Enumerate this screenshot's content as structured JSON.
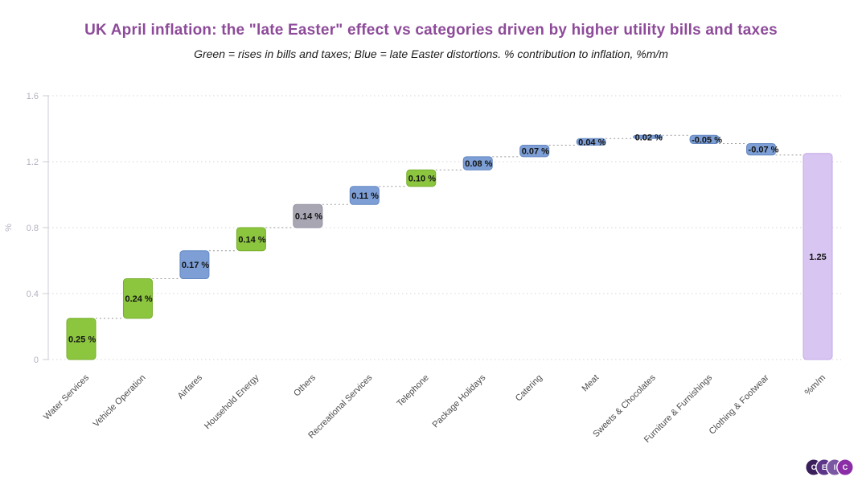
{
  "header": {
    "title": "UK April inflation: the \"late Easter\" effect vs categories driven by higher utility bills and taxes",
    "subtitle": "Green = rises in bills and taxes; Blue = late Easter distortions. % contribution to inflation, %m/m",
    "title_color": "#8d4a99"
  },
  "chart_data": {
    "type": "bar",
    "subtype": "waterfall",
    "title": "UK April inflation: the \"late Easter\" effect vs categories driven by higher utility bills and taxes",
    "subtitle": "Green = rises in bills and taxes; Blue = late Easter distortions. % contribution to inflation, %m/m",
    "categories": [
      "Water Services",
      "Vehicle Operation",
      "Airfares",
      "Household Energy",
      "Others",
      "Recreational Services",
      "Telephone",
      "Package Holidays",
      "Catering",
      "Meat",
      "Sweets & Chocolates",
      "Furniture & Furnishings",
      "Clothing & Footwear",
      "%m/m"
    ],
    "values": [
      0.25,
      0.24,
      0.17,
      0.14,
      0.14,
      0.11,
      0.1,
      0.08,
      0.07,
      0.04,
      0.02,
      -0.05,
      -0.07,
      1.25
    ],
    "value_labels": [
      "0.25 %",
      "0.24 %",
      "0.17 %",
      "0.14 %",
      "0.14 %",
      "0.11 %",
      "0.10 %",
      "0.08 %",
      "0.07 %",
      "0.04 %",
      "0.02 %",
      "-0.05 %",
      "-0.07 %",
      "1.25"
    ],
    "is_total": [
      false,
      false,
      false,
      false,
      false,
      false,
      false,
      false,
      false,
      false,
      false,
      false,
      false,
      true
    ],
    "types": [
      "bills",
      "bills",
      "easter",
      "bills",
      "other",
      "easter",
      "bills",
      "easter",
      "easter",
      "easter",
      "easter",
      "easter",
      "easter",
      "total"
    ],
    "color_map": {
      "bills": "#8cc63f",
      "easter": "#7d9fd6",
      "other": "#a9a6b4",
      "total": "#d8c5f1"
    },
    "border_map": {
      "bills": "#76ad2b",
      "easter": "#6487c2",
      "other": "#918da0",
      "total": "#c3a9e6"
    },
    "series_legend": {
      "bills": "rises in bills and taxes",
      "easter": "late Easter distortions",
      "other": "Others",
      "total": "total %m/m"
    },
    "ylabel": "%",
    "yticks": [
      0,
      0.4,
      0.8,
      1.2,
      1.6
    ],
    "ytick_labels": [
      "0",
      "0.4",
      "0.8",
      "1.2",
      "1.6"
    ],
    "ylim": [
      0,
      1.6
    ],
    "grid": "dotted horizontal",
    "legend": "none"
  },
  "footer": {
    "logo_letters": [
      "C",
      "E",
      "I",
      "C"
    ],
    "logo_colors": [
      "#3a1f5a",
      "#5c3588",
      "#7a57a2",
      "#8a2da6"
    ]
  }
}
